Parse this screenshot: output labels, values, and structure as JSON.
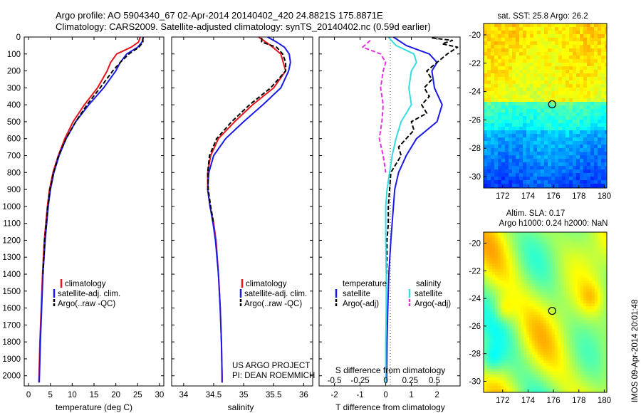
{
  "header": {
    "line1": "Argo profile: AO 5904340_67 02-Apr-2014 20140402_420 24.8821S 175.8871E",
    "line2": "Climatology: CARS2009. Satellite-adjusted climatology: synTS_20140402.nc (0.59d earlier)"
  },
  "colors": {
    "climatology": "#e8141b",
    "satellite": "#1a1ae6",
    "argo": "#000000",
    "salinity_satellite": "#33dde0",
    "salinity_argo": "#e033e0"
  },
  "chart_data": [
    {
      "id": "temperature",
      "type": "line",
      "xlabel": "temperature (deg C)",
      "xlim": [
        -1,
        31
      ],
      "xticks": [
        0,
        5,
        10,
        15,
        20,
        25,
        30
      ],
      "ylim": [
        2060,
        0
      ],
      "yticks": [
        0,
        100,
        200,
        300,
        400,
        500,
        600,
        700,
        800,
        900,
        1000,
        1100,
        1200,
        1300,
        1400,
        1500,
        1600,
        1700,
        1800,
        1900,
        2000
      ],
      "legend": [
        "climatology",
        "satellite-adj. clim.",
        "Argo(..raw -QC)"
      ],
      "series": [
        {
          "name": "climatology",
          "color_key": "climatology",
          "dash": "",
          "depth": [
            0,
            30,
            60,
            100,
            150,
            200,
            300,
            400,
            500,
            600,
            700,
            800,
            900,
            1000,
            1200,
            1400,
            1600,
            1800,
            2000,
            2040
          ],
          "values": [
            25.6,
            25.2,
            23.5,
            20.2,
            18.8,
            18.0,
            15.8,
            12.8,
            10.2,
            8.3,
            6.8,
            5.6,
            4.8,
            4.3,
            3.6,
            3.2,
            2.9,
            2.6,
            2.4,
            2.35
          ]
        },
        {
          "name": "satellite-adj. clim.",
          "color_key": "satellite",
          "dash": "",
          "depth": [
            0,
            30,
            60,
            100,
            150,
            200,
            300,
            400,
            500,
            600,
            700,
            800,
            900,
            1000,
            1200,
            1400,
            1600,
            1800,
            2000,
            2040
          ],
          "values": [
            26.3,
            26.0,
            25.0,
            22.5,
            21.0,
            20.0,
            17.2,
            13.8,
            10.8,
            8.6,
            7.0,
            5.8,
            5.0,
            4.5,
            3.8,
            3.3,
            3.0,
            2.7,
            2.5,
            2.45
          ]
        },
        {
          "name": "Argo(..raw -QC)",
          "color_key": "argo",
          "dash": "6,3",
          "depth": [
            5,
            30,
            60,
            100,
            150,
            200,
            300,
            400,
            500,
            600,
            700,
            800,
            900,
            1000,
            1200,
            1400
          ],
          "values": [
            26.2,
            26.2,
            25.3,
            23.0,
            21.0,
            19.3,
            16.4,
            13.4,
            10.8,
            8.6,
            6.9,
            5.7,
            4.9,
            4.4,
            3.7,
            3.3
          ]
        }
      ]
    },
    {
      "id": "salinity",
      "type": "line",
      "xlabel": "salinity",
      "xlim": [
        33.8,
        36.15
      ],
      "xticks": [
        34,
        34.5,
        35,
        35.5,
        36
      ],
      "ylim": [
        2060,
        0
      ],
      "legend": [
        "climatology",
        "satellite-adj. clim.",
        "Argo(..raw -QC)"
      ],
      "annotation": [
        "US ARGO PROJECT",
        "PI: DEAN ROEMMICH"
      ],
      "series": [
        {
          "name": "climatology",
          "color_key": "climatology",
          "dash": "",
          "depth": [
            0,
            50,
            100,
            200,
            300,
            400,
            500,
            600,
            700,
            800,
            900,
            1000,
            1100,
            1200,
            1400,
            1600,
            1800,
            2000,
            2040
          ],
          "values": [
            35.25,
            35.45,
            35.62,
            35.7,
            35.5,
            35.15,
            34.85,
            34.58,
            34.45,
            34.4,
            34.4,
            34.44,
            34.5,
            34.54,
            34.58,
            34.61,
            34.63,
            34.64,
            34.64
          ]
        },
        {
          "name": "satellite-adj. clim.",
          "color_key": "satellite",
          "dash": "",
          "depth": [
            0,
            30,
            60,
            100,
            150,
            200,
            300,
            400,
            500,
            600,
            700,
            800,
            900,
            1000,
            1100,
            1200,
            1400,
            1600,
            1800,
            2000,
            2040
          ],
          "values": [
            35.4,
            35.55,
            35.68,
            35.76,
            35.78,
            35.75,
            35.62,
            35.32,
            35.0,
            34.7,
            34.5,
            34.42,
            34.4,
            34.44,
            34.49,
            34.53,
            34.58,
            34.61,
            34.63,
            34.64,
            34.64
          ]
        },
        {
          "name": "Argo(..raw -QC)",
          "color_key": "argo",
          "dash": "6,3",
          "depth": [
            5,
            30,
            60,
            100,
            150,
            200,
            300,
            400,
            500,
            600,
            700,
            800,
            900,
            1000,
            1100
          ],
          "values": [
            35.3,
            35.3,
            35.55,
            35.65,
            35.7,
            35.7,
            35.45,
            35.1,
            34.8,
            34.55,
            34.43,
            34.4,
            34.41,
            34.45,
            34.5
          ]
        }
      ]
    },
    {
      "id": "difference",
      "type": "line",
      "xlabel": "T difference from climatology",
      "xlabel_top": "S difference from climatology",
      "xlim": [
        -2.6,
        2.9
      ],
      "xticks": [
        -2,
        -1,
        0,
        1,
        2
      ],
      "xticks_s_positions": [
        -2,
        -1,
        0.95,
        1.9
      ],
      "xticks_s_labels": [
        "-0.5",
        "-0.25",
        "0.25",
        "0.5"
      ],
      "ylim": [
        2060,
        0
      ],
      "legend_title_left": "temperature",
      "legend_title_right": "salinity",
      "legend_left": [
        "satellite",
        "Argo(-adj)"
      ],
      "legend_right": [
        "satellite",
        "Argo(-adj)"
      ],
      "series": [
        {
          "name": "temperature satellite",
          "color_key": "satellite",
          "dash": "",
          "depth": [
            0,
            50,
            100,
            150,
            200,
            300,
            400,
            500,
            600,
            700,
            800,
            900,
            1000,
            1200,
            1400,
            1600,
            1800,
            2000,
            2040
          ],
          "values": [
            0.3,
            0.8,
            1.7,
            2.0,
            1.8,
            1.9,
            2.2,
            2.0,
            1.2,
            0.8,
            0.5,
            0.35,
            0.3,
            0.2,
            0.12,
            0.08,
            0.05,
            0.04,
            0.03
          ]
        },
        {
          "name": "temperature Argo(-adj)",
          "color_key": "argo",
          "dash": "6,3",
          "depth": [
            5,
            20,
            40,
            60,
            100,
            150,
            200,
            250,
            300,
            350,
            400,
            450,
            500,
            550,
            600,
            650,
            700,
            750,
            800,
            900,
            1000,
            1100,
            1200,
            1300,
            1400
          ],
          "values": [
            1.8,
            2.6,
            2.2,
            2.8,
            2.4,
            2.0,
            1.6,
            1.8,
            1.5,
            1.7,
            1.4,
            1.6,
            1.0,
            1.1,
            0.8,
            0.5,
            0.6,
            0.4,
            0.2,
            0.15,
            0.1,
            0.1,
            0.05,
            0.05,
            0.03
          ]
        },
        {
          "name": "salinity satellite",
          "color_key": "salinity_satellite",
          "dash": "",
          "depth": [
            0,
            50,
            100,
            150,
            200,
            300,
            400,
            500,
            600,
            700,
            800,
            900,
            1000,
            1200,
            1400,
            1600,
            1800,
            2000,
            2040
          ],
          "values": [
            0.1,
            0.4,
            1.1,
            1.2,
            1.0,
            0.9,
            1.0,
            0.6,
            0.4,
            0.25,
            0.15,
            0.05,
            0.0,
            0.0,
            0.02,
            0.02,
            0.0,
            0.0,
            0.0
          ]
        },
        {
          "name": "salinity Argo(-adj)",
          "color_key": "salinity_argo",
          "dash": "6,3",
          "depth": [
            20,
            60,
            100,
            150,
            200,
            300,
            400,
            500,
            600,
            700,
            800
          ],
          "values": [
            -0.6,
            -0.9,
            -0.2,
            0.0,
            -0.1,
            -0.2,
            -0.1,
            -0.15,
            -0.25,
            -0.1,
            0.0
          ]
        }
      ]
    },
    {
      "id": "sst_map",
      "type": "heatmap",
      "title": "sat. SST: 25.8  Argo: 26.2",
      "xlim": [
        170.5,
        180.2
      ],
      "ylim": [
        -30.8,
        -19.2
      ],
      "xticks": [
        172,
        174,
        176,
        178,
        180
      ],
      "yticks": [
        -20,
        -22,
        -24,
        -26,
        -28,
        -30
      ],
      "marker": {
        "lon": 175.9,
        "lat": -24.9
      }
    },
    {
      "id": "sla_map",
      "type": "heatmap",
      "title_line1": "Altim. SLA: 0.17",
      "title_line2": "Argo h1000: 0.24 h2000: NaN",
      "xlim": [
        170.5,
        180.2
      ],
      "ylim": [
        -30.8,
        -19.2
      ],
      "xticks": [
        172,
        174,
        176,
        178,
        180
      ],
      "yticks": [
        -20,
        -22,
        -24,
        -26,
        -28,
        -30
      ],
      "marker": {
        "lon": 175.9,
        "lat": -24.9
      }
    }
  ],
  "side_stamp": "IMOS 09-Apr-2014 20:01:48"
}
